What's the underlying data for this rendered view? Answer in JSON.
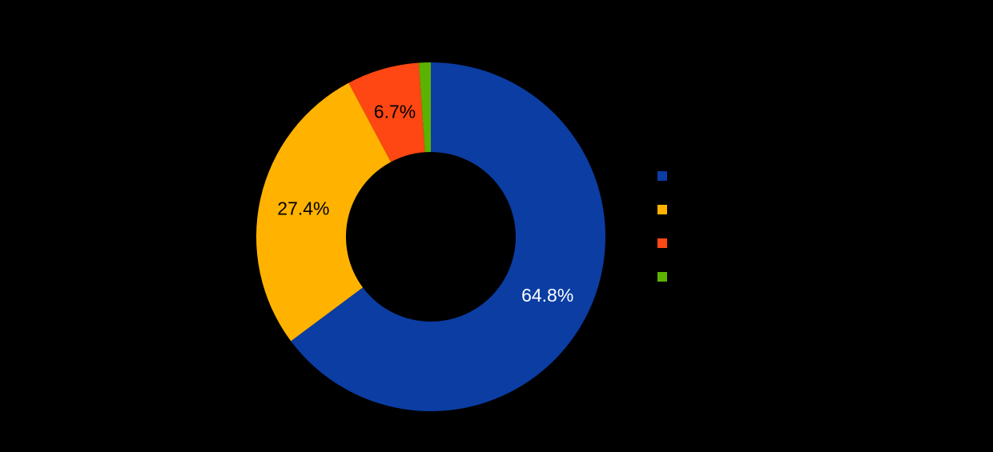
{
  "canvas": {
    "background": "#000000"
  },
  "chart_data": {
    "type": "pie",
    "subtype": "donut",
    "title": "",
    "legend_position": "right",
    "start_angle_deg": 0,
    "direction": "clockwise",
    "hole_ratio": 0.49,
    "units": "percent",
    "slices": [
      {
        "label": "",
        "value": 64.8,
        "display": "64.8%",
        "color": "#0B3DA3",
        "label_color": "#FFFFFF"
      },
      {
        "label": "",
        "value": 27.4,
        "display": "27.4%",
        "color": "#FFB300",
        "label_color": "#000000"
      },
      {
        "label": "",
        "value": 6.7,
        "display": "6.7%",
        "color": "#FF4713",
        "label_color": "#000000"
      },
      {
        "label": "",
        "value": 1.1,
        "display": "",
        "color": "#5CB200",
        "label_color": "#000000"
      }
    ]
  }
}
